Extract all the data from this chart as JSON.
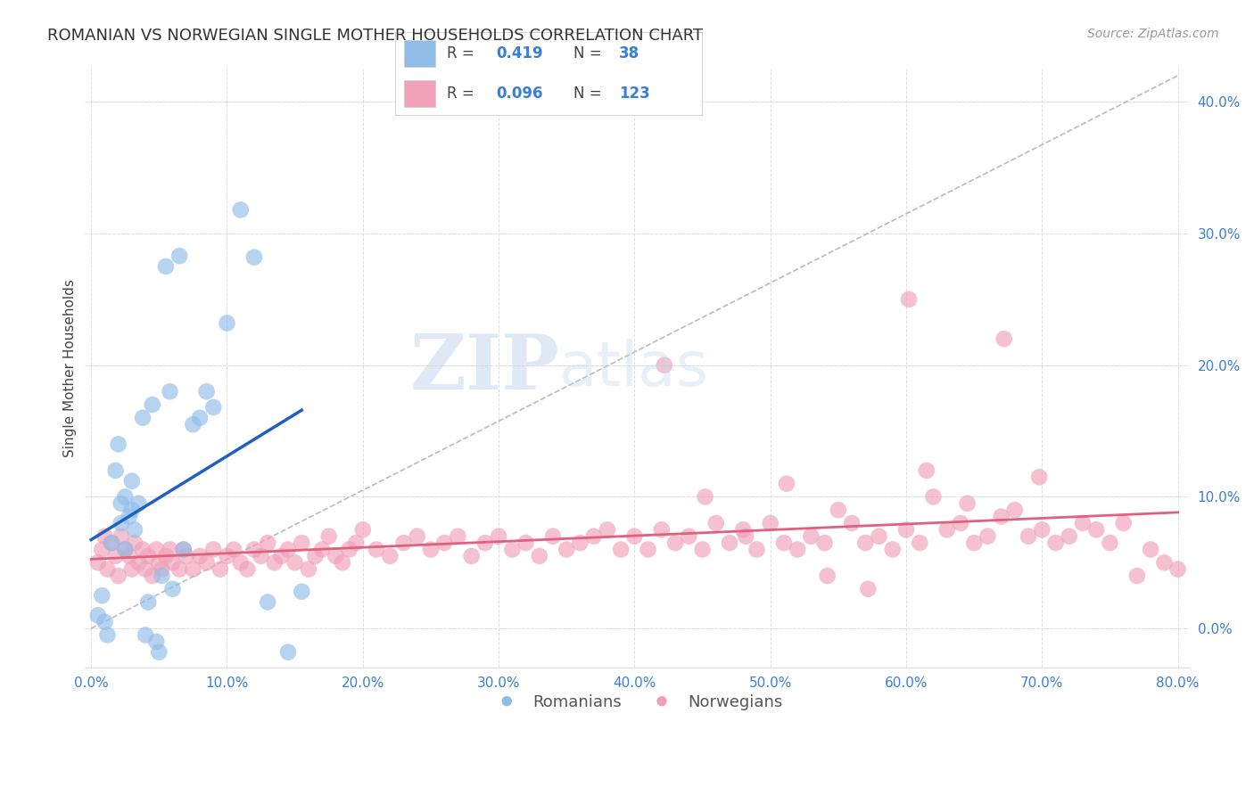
{
  "title": "ROMANIAN VS NORWEGIAN SINGLE MOTHER HOUSEHOLDS CORRELATION CHART",
  "source": "Source: ZipAtlas.com",
  "ylabel": "Single Mother Households",
  "xmin": 0.0,
  "xmax": 0.8,
  "ymin": -0.03,
  "ymax": 0.42,
  "xticks": [
    0.0,
    0.1,
    0.2,
    0.3,
    0.4,
    0.5,
    0.6,
    0.7,
    0.8
  ],
  "xtick_labels": [
    "0.0%",
    "10.0%",
    "20.0%",
    "30.0%",
    "40.0%",
    "50.0%",
    "60.0%",
    "70.0%",
    "80.0%"
  ],
  "yticks": [
    0.0,
    0.1,
    0.2,
    0.3,
    0.4
  ],
  "ytick_labels": [
    "0.0%",
    "10.0%",
    "20.0%",
    "30.0%",
    "40.0%"
  ],
  "watermark_zip": "ZIP",
  "watermark_atlas": "atlas",
  "blue_color": "#90bce8",
  "pink_color": "#f0a0b8",
  "blue_line_color": "#2060c0",
  "pink_line_color": "#e06080",
  "ref_line_color": "#bbbbbb",
  "legend_R_blue": "0.419",
  "legend_N_blue": "38",
  "legend_R_pink": "0.096",
  "legend_N_pink": "123",
  "legend_label_blue": "Romanians",
  "legend_label_pink": "Norwegians",
  "blue_x": [
    0.005,
    0.008,
    0.01,
    0.012,
    0.015,
    0.018,
    0.02,
    0.022,
    0.022,
    0.025,
    0.025,
    0.028,
    0.03,
    0.03,
    0.032,
    0.035,
    0.038,
    0.04,
    0.042,
    0.045,
    0.048,
    0.05,
    0.052,
    0.055,
    0.058,
    0.06,
    0.065,
    0.068,
    0.075,
    0.08,
    0.085,
    0.09,
    0.1,
    0.11,
    0.12,
    0.13,
    0.145,
    0.155
  ],
  "blue_y": [
    0.01,
    0.025,
    0.005,
    -0.005,
    0.065,
    0.12,
    0.14,
    0.08,
    0.095,
    0.1,
    0.06,
    0.085,
    0.09,
    0.112,
    0.075,
    0.095,
    0.16,
    -0.005,
    0.02,
    0.17,
    -0.01,
    -0.018,
    0.04,
    0.275,
    0.18,
    0.03,
    0.283,
    0.06,
    0.155,
    0.16,
    0.18,
    0.168,
    0.232,
    0.318,
    0.282,
    0.02,
    -0.018,
    0.028
  ],
  "pink_x": [
    0.005,
    0.008,
    0.01,
    0.012,
    0.015,
    0.018,
    0.02,
    0.022,
    0.025,
    0.028,
    0.03,
    0.032,
    0.035,
    0.038,
    0.04,
    0.042,
    0.045,
    0.048,
    0.05,
    0.052,
    0.055,
    0.058,
    0.06,
    0.065,
    0.068,
    0.07,
    0.075,
    0.08,
    0.085,
    0.09,
    0.095,
    0.1,
    0.105,
    0.11,
    0.115,
    0.12,
    0.125,
    0.13,
    0.135,
    0.14,
    0.145,
    0.15,
    0.155,
    0.16,
    0.165,
    0.17,
    0.175,
    0.18,
    0.185,
    0.19,
    0.195,
    0.2,
    0.21,
    0.22,
    0.23,
    0.24,
    0.25,
    0.26,
    0.27,
    0.28,
    0.29,
    0.3,
    0.31,
    0.32,
    0.33,
    0.34,
    0.35,
    0.36,
    0.37,
    0.38,
    0.39,
    0.4,
    0.41,
    0.42,
    0.43,
    0.44,
    0.45,
    0.46,
    0.47,
    0.48,
    0.49,
    0.5,
    0.51,
    0.52,
    0.53,
    0.54,
    0.55,
    0.56,
    0.57,
    0.58,
    0.59,
    0.6,
    0.61,
    0.62,
    0.63,
    0.64,
    0.65,
    0.66,
    0.67,
    0.68,
    0.69,
    0.7,
    0.71,
    0.72,
    0.73,
    0.74,
    0.75,
    0.76,
    0.77,
    0.78,
    0.79,
    0.8,
    0.615,
    0.645,
    0.672,
    0.698,
    0.422,
    0.452,
    0.482,
    0.512,
    0.542,
    0.572,
    0.602
  ],
  "pink_y": [
    0.05,
    0.06,
    0.07,
    0.045,
    0.065,
    0.055,
    0.04,
    0.07,
    0.06,
    0.055,
    0.045,
    0.065,
    0.05,
    0.06,
    0.045,
    0.055,
    0.04,
    0.06,
    0.05,
    0.045,
    0.055,
    0.06,
    0.05,
    0.045,
    0.06,
    0.055,
    0.045,
    0.055,
    0.05,
    0.06,
    0.045,
    0.055,
    0.06,
    0.05,
    0.045,
    0.06,
    0.055,
    0.065,
    0.05,
    0.055,
    0.06,
    0.05,
    0.065,
    0.045,
    0.055,
    0.06,
    0.07,
    0.055,
    0.05,
    0.06,
    0.065,
    0.075,
    0.06,
    0.055,
    0.065,
    0.07,
    0.06,
    0.065,
    0.07,
    0.055,
    0.065,
    0.07,
    0.06,
    0.065,
    0.055,
    0.07,
    0.06,
    0.065,
    0.07,
    0.075,
    0.06,
    0.07,
    0.06,
    0.075,
    0.065,
    0.07,
    0.06,
    0.08,
    0.065,
    0.075,
    0.06,
    0.08,
    0.065,
    0.06,
    0.07,
    0.065,
    0.09,
    0.08,
    0.065,
    0.07,
    0.06,
    0.075,
    0.065,
    0.1,
    0.075,
    0.08,
    0.065,
    0.07,
    0.085,
    0.09,
    0.07,
    0.075,
    0.065,
    0.07,
    0.08,
    0.075,
    0.065,
    0.08,
    0.04,
    0.06,
    0.05,
    0.045,
    0.12,
    0.095,
    0.22,
    0.115,
    0.2,
    0.1,
    0.07,
    0.11,
    0.04,
    0.03,
    0.25
  ]
}
